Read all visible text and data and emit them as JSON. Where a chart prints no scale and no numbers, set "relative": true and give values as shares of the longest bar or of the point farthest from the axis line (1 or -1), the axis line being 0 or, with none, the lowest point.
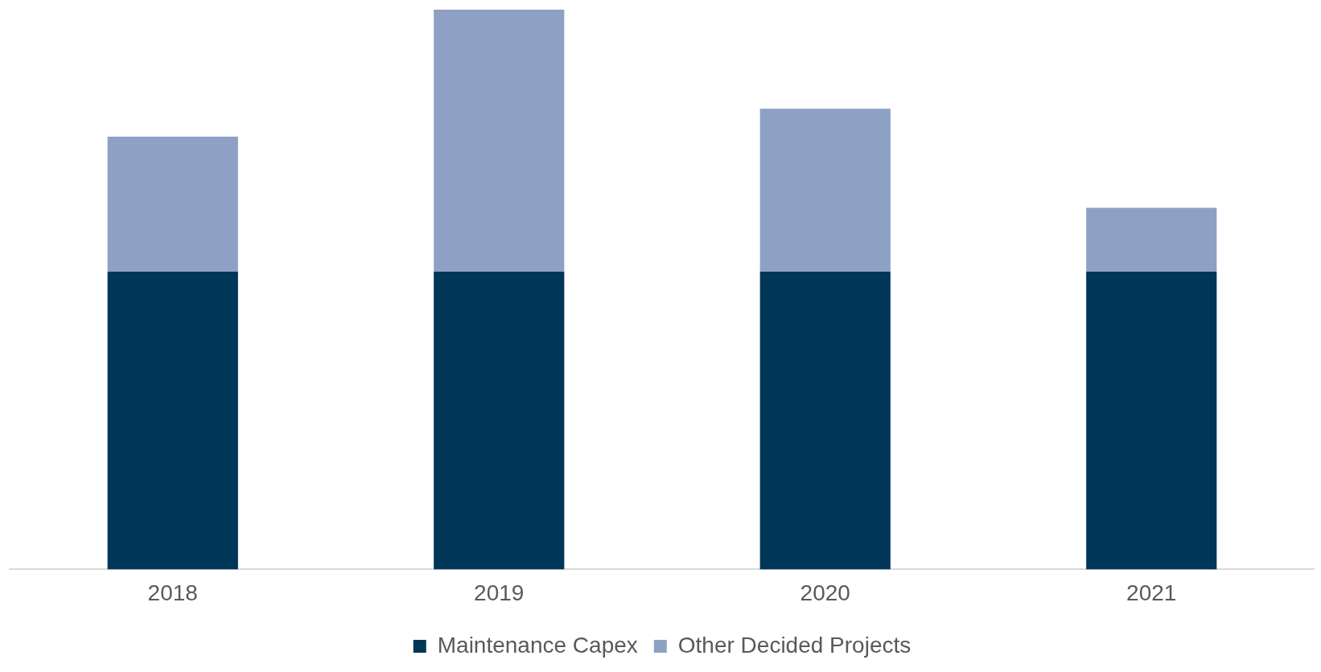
{
  "chart_data": {
    "type": "bar",
    "stacked": true,
    "relative": true,
    "categories": [
      "2018",
      "2019",
      "2020",
      "2021"
    ],
    "series": [
      {
        "name": "Maintenance Capex",
        "color": "#003657",
        "values": [
          0.532,
          0.532,
          0.532,
          0.532
        ]
      },
      {
        "name": "Other Decided Projects",
        "color": "#8ea0c4",
        "values": [
          0.241,
          0.468,
          0.291,
          0.114
        ]
      }
    ],
    "legend": "bottom",
    "grid": false
  }
}
